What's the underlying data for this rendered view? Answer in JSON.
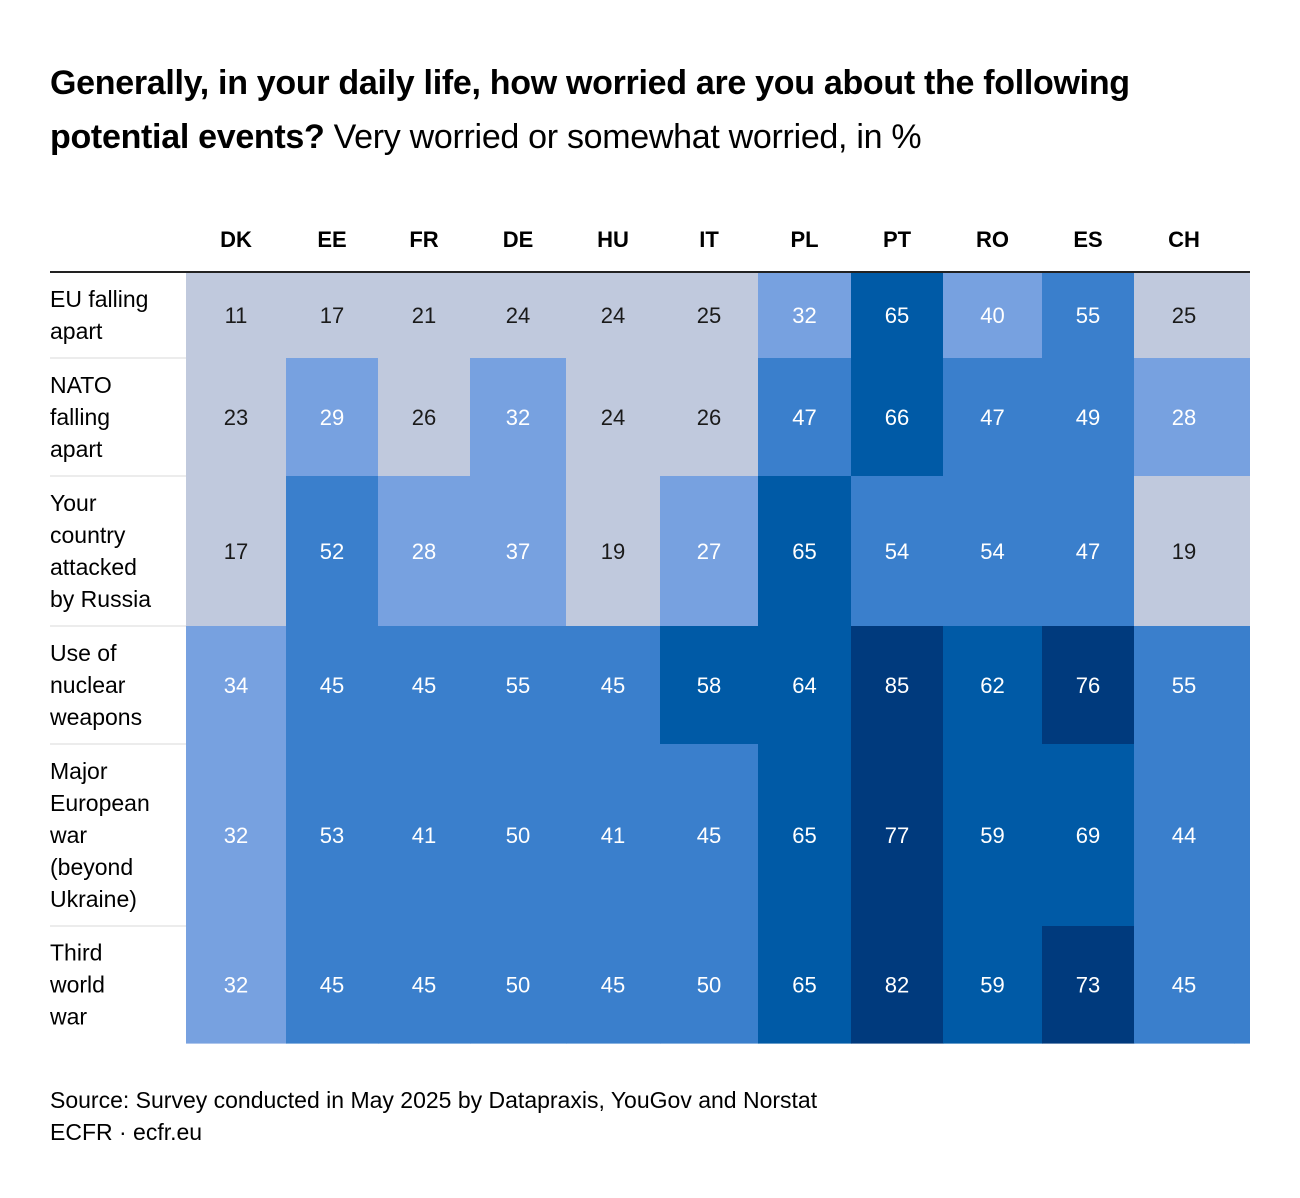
{
  "title": {
    "bold": "Generally, in your daily life, how worried are you about the following potential events?",
    "light": "Very worried or somewhat worried, in %"
  },
  "chart_data": {
    "type": "heatmap",
    "title": "Generally, in your daily life, how worried are you about the following potential events? Very worried or somewhat worried, in %",
    "columns": [
      "DK",
      "EE",
      "FR",
      "DE",
      "HU",
      "IT",
      "PL",
      "PT",
      "RO",
      "ES",
      "CH"
    ],
    "rows": [
      {
        "label": [
          "EU falling",
          "apart"
        ],
        "values": [
          11,
          17,
          21,
          24,
          24,
          25,
          32,
          65,
          40,
          55,
          25
        ]
      },
      {
        "label": [
          "NATO",
          "falling",
          "apart"
        ],
        "values": [
          23,
          29,
          26,
          32,
          24,
          26,
          47,
          66,
          47,
          49,
          28
        ]
      },
      {
        "label": [
          "Your",
          "country",
          "attacked",
          "by Russia"
        ],
        "values": [
          17,
          52,
          28,
          37,
          19,
          27,
          65,
          54,
          54,
          47,
          19
        ]
      },
      {
        "label": [
          "Use of",
          "nuclear",
          "weapons"
        ],
        "values": [
          34,
          45,
          45,
          55,
          45,
          58,
          64,
          85,
          62,
          76,
          55
        ]
      },
      {
        "label": [
          "Major",
          "European",
          "war",
          "(beyond",
          "Ukraine)"
        ],
        "values": [
          32,
          53,
          41,
          50,
          41,
          45,
          65,
          77,
          59,
          69,
          44
        ]
      },
      {
        "label": [
          "Third",
          "world",
          "war"
        ],
        "values": [
          32,
          45,
          45,
          50,
          45,
          50,
          65,
          82,
          59,
          73,
          45
        ]
      }
    ],
    "color_scale": [
      {
        "min": 0,
        "max": 26,
        "color": "#c0c9dd",
        "text": "#1a1a1a"
      },
      {
        "min": 27,
        "max": 40,
        "color": "#77a1e0",
        "text": "#ffffff"
      },
      {
        "min": 41,
        "max": 56,
        "color": "#3a7fcc",
        "text": "#ffffff"
      },
      {
        "min": 57,
        "max": 69,
        "color": "#005aa6",
        "text": "#ffffff"
      },
      {
        "min": 70,
        "max": 100,
        "color": "#003a7d",
        "text": "#ffffff"
      }
    ]
  },
  "footer": {
    "source": "Source: Survey conducted in May 2025 by Datapraxis, YouGov and Norstat",
    "credit": "ECFR · ecfr.eu"
  }
}
